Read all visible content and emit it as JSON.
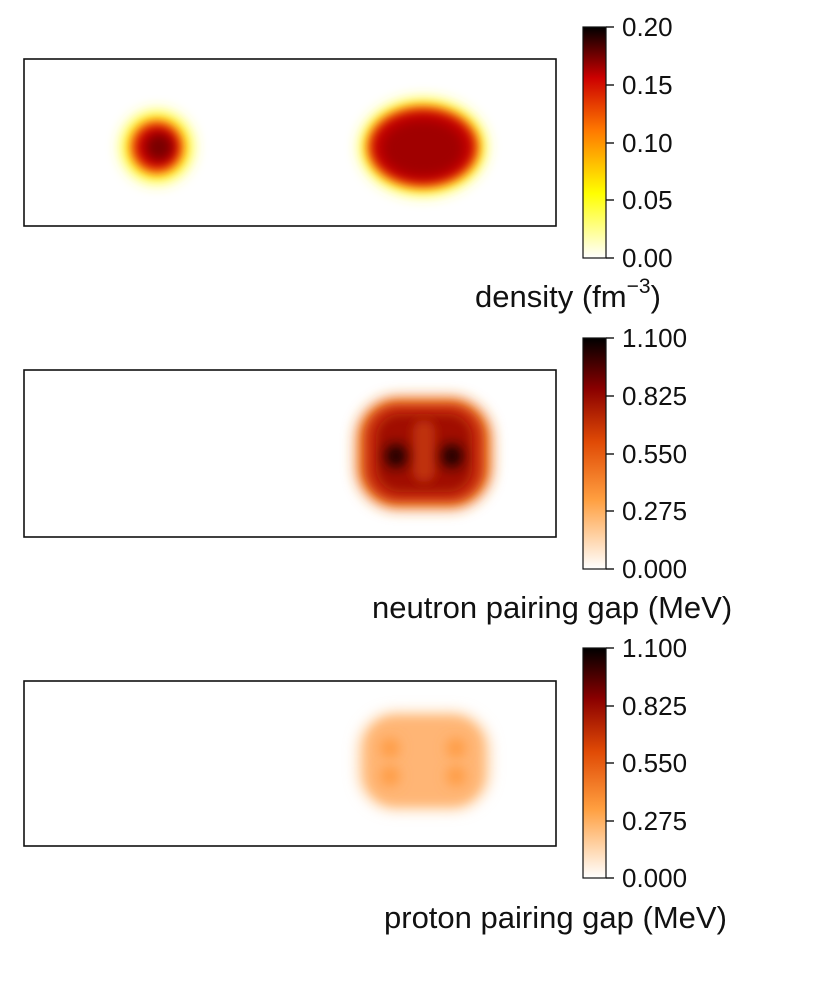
{
  "chart_data": [
    {
      "type": "heatmap",
      "name": "density",
      "colormap": "hot_r",
      "colorbar": {
        "label_main": "density (fm",
        "label_exp": "−3",
        "label_close": ")",
        "ticks": [
          "0.20",
          "0.15",
          "0.10",
          "0.05",
          "0.00"
        ],
        "range": [
          0,
          0.2
        ]
      },
      "blobs": [
        {
          "value": 0.17,
          "kind": "drop"
        },
        {
          "value": 0.16,
          "kind": "ellipse"
        }
      ]
    },
    {
      "type": "heatmap",
      "name": "neutron-pairing-gap",
      "colormap": "gist_heat_r",
      "colorbar": {
        "label": "neutron pairing gap (MeV)",
        "ticks": [
          "1.100",
          "0.825",
          "0.550",
          "0.275",
          "0.000"
        ],
        "range": [
          0,
          1.1
        ]
      },
      "blobs": [
        {
          "value": 0.7,
          "kind": "rounded"
        },
        {
          "value": 1.05,
          "kind": "spot"
        },
        {
          "value": 1.05,
          "kind": "spot"
        }
      ]
    },
    {
      "type": "heatmap",
      "name": "proton-pairing-gap",
      "colormap": "gist_heat_r",
      "colorbar": {
        "label": "proton pairing gap (MeV)",
        "ticks": [
          "1.100",
          "0.825",
          "0.550",
          "0.275",
          "0.000"
        ],
        "range": [
          0,
          1.1
        ]
      },
      "blobs": [
        {
          "value": 0.22,
          "kind": "rounded"
        },
        {
          "value": 0.3,
          "kind": "spot"
        },
        {
          "value": 0.3,
          "kind": "spot"
        },
        {
          "value": 0.3,
          "kind": "spot"
        },
        {
          "value": 0.3,
          "kind": "spot"
        }
      ]
    }
  ]
}
